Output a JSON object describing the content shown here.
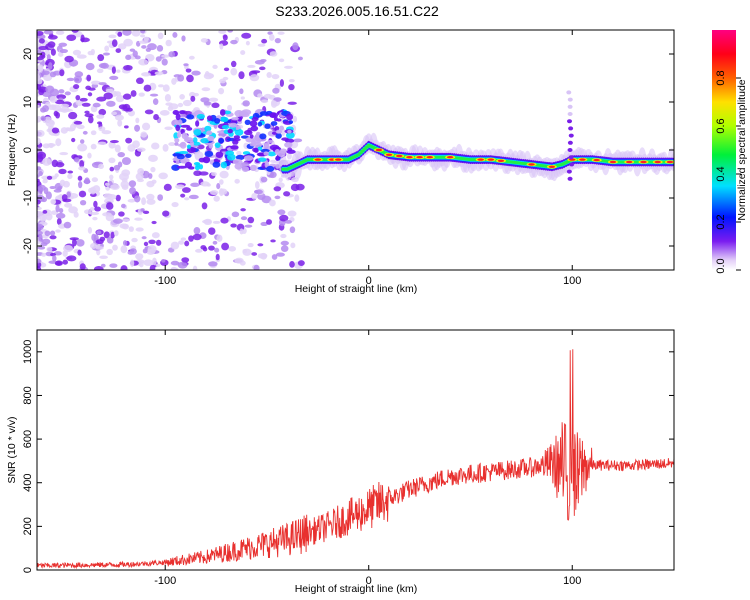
{
  "title": "S233.2026.005.16.51.C22",
  "chart_data": [
    {
      "type": "heatmap",
      "xlabel": "Height of straight line (km)",
      "ylabel": "Frequency (Hz)",
      "xlim": [
        -163,
        150
      ],
      "ylim": [
        -25,
        25
      ],
      "xticks": [
        -100,
        0,
        100
      ],
      "yticks": [
        -20,
        -10,
        0,
        10,
        20
      ],
      "colorbar": {
        "label": "Normalized spectral amplitude",
        "ticks": [
          "0.0",
          "0.2",
          "0.4",
          "0.6",
          "0.8"
        ],
        "range": [
          0,
          1
        ],
        "colormap": "rainbow (white-violet-blue-cyan-green-yellow-orange-red-magenta)"
      },
      "ridge": {
        "description": "dominant narrow-band frequency vs height",
        "x": [
          -40,
          -30,
          -20,
          -10,
          -5,
          0,
          10,
          20,
          30,
          40,
          50,
          60,
          70,
          80,
          90,
          95,
          100,
          110,
          120,
          130,
          140,
          150
        ],
        "y": [
          -4,
          -2,
          -2,
          -2,
          -1,
          1,
          -1,
          -1.5,
          -1.5,
          -1.5,
          -2,
          -2,
          -2.5,
          -3,
          -3.5,
          -3,
          -2,
          -2,
          -2.5,
          -2.5,
          -2.5,
          -2.5
        ]
      }
    },
    {
      "type": "line",
      "xlabel": "Height of straight line (km)",
      "ylabel": "SNR (10 * v/v)",
      "xlim": [
        -163,
        150
      ],
      "ylim": [
        0,
        1100
      ],
      "xticks": [
        -100,
        0,
        100
      ],
      "yticks": [
        0,
        200,
        400,
        600,
        800,
        1000
      ],
      "color": "#e8302e",
      "trend": {
        "x": [
          -163,
          -120,
          -100,
          -80,
          -60,
          -40,
          -20,
          0,
          20,
          40,
          60,
          80,
          90,
          95,
          100,
          105,
          110,
          130,
          150
        ],
        "y": [
          20,
          25,
          35,
          60,
          100,
          140,
          200,
          280,
          370,
          430,
          450,
          470,
          490,
          470,
          350,
          470,
          480,
          480,
          490
        ]
      }
    }
  ]
}
